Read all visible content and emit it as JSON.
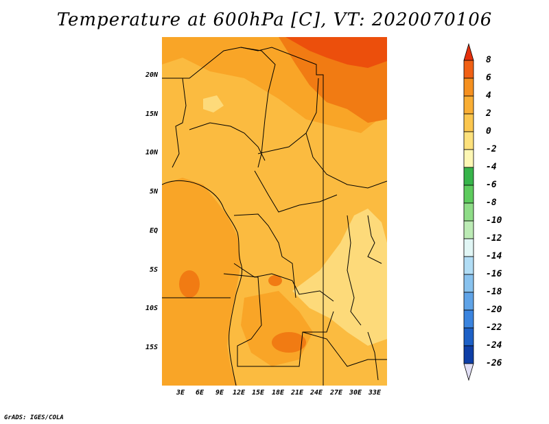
{
  "title": "Temperature at 600hPa [C], VT: 2020070106",
  "credit": "GrADS: IGES/COLA",
  "map": {
    "lat_labels": [
      "20N",
      "15N",
      "10N",
      "5N",
      "EQ",
      "5S",
      "10S",
      "15S"
    ],
    "lon_labels": [
      "3E",
      "6E",
      "9E",
      "12E",
      "15E",
      "18E",
      "21E",
      "24E",
      "27E",
      "30E",
      "33E"
    ],
    "fill_colors": {
      "warm_2_4": "#F9A527",
      "warm_0_2": "#FBBB40",
      "mild_neg2_0": "#FDDA7A",
      "warm_4_6": "#F17B13",
      "hot_6_8": "#EC4F0C"
    }
  },
  "colorbar": {
    "labels": [
      "8",
      "6",
      "4",
      "2",
      "0",
      "-2",
      "-4",
      "-6",
      "-8",
      "-10",
      "-12",
      "-14",
      "-16",
      "-18",
      "-20",
      "-22",
      "-24",
      "-26"
    ],
    "colors": [
      "#E5300C",
      "#F06014",
      "#F5901F",
      "#F9AE34",
      "#FBC64E",
      "#FDE17C",
      "#FDF7B4",
      "#37B44A",
      "#5DCB5D",
      "#8EDC87",
      "#BCEBB5",
      "#E1F6F5",
      "#B1DDF5",
      "#88C2EE",
      "#5FA3E7",
      "#3A84DF",
      "#1D60C6",
      "#0E3EA6",
      "#081E78"
    ],
    "top_arrow_color": "#E5300C",
    "bottom_arrow_color": "#E1DFF5"
  }
}
